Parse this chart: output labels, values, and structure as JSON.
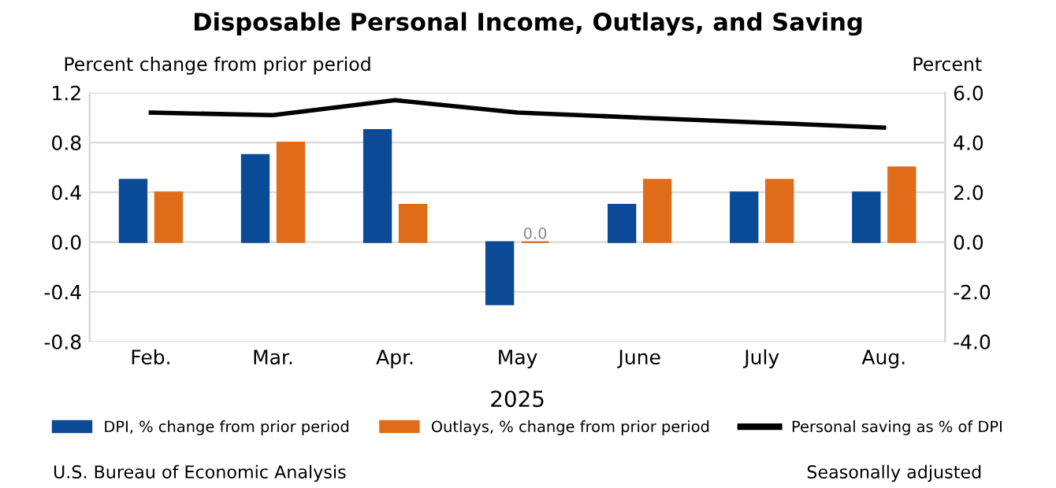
{
  "chart_data": {
    "type": "bar",
    "title": "Disposable Personal Income, Outlays, and Saving",
    "xlabel": "2025",
    "ylabel": "Percent change from prior period",
    "y2label": "Percent",
    "categories": [
      "Feb.",
      "Mar.",
      "Apr.",
      "May",
      "June",
      "July",
      "Aug."
    ],
    "series": [
      {
        "name": "DPI, % change from prior period",
        "color": "#0b4a96",
        "values": [
          0.5,
          0.7,
          0.9,
          -0.5,
          0.3,
          0.4,
          0.4
        ]
      },
      {
        "name": "Outlays, % change from prior period",
        "color": "#e06c1a",
        "values": [
          0.4,
          0.8,
          0.3,
          0.0,
          0.5,
          0.5,
          0.6
        ],
        "value_labels": [
          null,
          null,
          null,
          "0.0",
          null,
          null,
          null
        ]
      },
      {
        "name": "Personal saving as % of DPI",
        "color": "#000000",
        "type": "line",
        "axis": "y2",
        "values": [
          5.2,
          5.1,
          5.7,
          5.2,
          5.0,
          4.8,
          4.6
        ]
      }
    ],
    "ylim": [
      -0.8,
      1.2
    ],
    "yticks": [
      -0.8,
      -0.4,
      {
        "value": 0,
        "label": "0.0"
      },
      0.4,
      0.8,
      1.2
    ],
    "y2lim": [
      -4,
      6
    ],
    "y2ticks": [
      {
        "value": -4,
        "label": "-4.0"
      },
      {
        "value": -2,
        "label": "-2.0"
      },
      {
        "value": 0,
        "label": "0.0"
      },
      {
        "value": 2,
        "label": "2.0"
      },
      {
        "value": 4,
        "label": "4.0"
      },
      {
        "value": 6,
        "label": "6.0"
      }
    ],
    "grid": "y",
    "legend": "bottom",
    "marker": "none",
    "line_style": "solid",
    "annotations": [
      "U.S. Bureau of Economic Analysis",
      "Seasonally adjusted"
    ]
  }
}
